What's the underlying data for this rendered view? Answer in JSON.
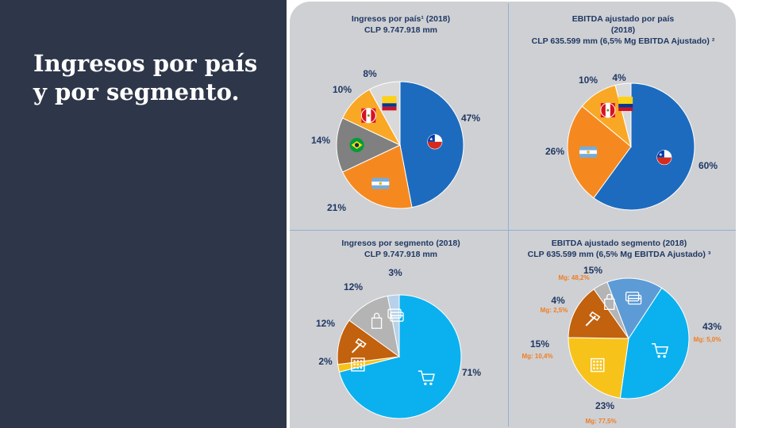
{
  "slide": {
    "title_line1": "Ingresos por país",
    "title_line2": "y por segmento."
  },
  "colors": {
    "left_panel": "#2e3649",
    "card": "#cfd0d3",
    "divider": "#8fb0d6",
    "blue_dark": "#1d6bbf",
    "orange": "#f5891f",
    "gray": "#808080",
    "amber": "#f9a825",
    "light_gray": "#d9d9d9",
    "sky_blue": "#0bb1ef",
    "brown": "#c2610e",
    "yellow": "#f7c31b",
    "steel_blue": "#5c9bd6",
    "light_blue": "#b7d1ea"
  },
  "chart_data": [
    {
      "id": "ingresos-pais",
      "type": "pie",
      "title_line1": "Ingresos por país¹ (2018)",
      "title_line2": "CLP 9.747.918 mm",
      "title_line3": "",
      "slices": [
        {
          "value": 47,
          "label": "47%",
          "icon": "chile-flag-icon",
          "color": "#1d6bbf"
        },
        {
          "value": 21,
          "label": "21%",
          "icon": "argentina-flag-icon",
          "color": "#f5891f"
        },
        {
          "value": 14,
          "label": "14%",
          "icon": "brazil-flag-icon",
          "color": "#808080"
        },
        {
          "value": 10,
          "label": "10%",
          "icon": "peru-flag-icon",
          "color": "#f9a825"
        },
        {
          "value": 8,
          "label": "8%",
          "icon": "colombia-flag-icon",
          "color": "#d9d9d9"
        }
      ]
    },
    {
      "id": "ebitda-pais",
      "type": "pie",
      "title_line1": "EBITDA ajustado por país",
      "title_line2": "(2018)",
      "title_line3": "CLP 635.599 mm (6,5% Mg EBITDA Ajustado) ²",
      "slices": [
        {
          "value": 60,
          "label": "60%",
          "icon": "chile-flag-icon",
          "color": "#1d6bbf"
        },
        {
          "value": 26,
          "label": "26%",
          "icon": "argentina-flag-icon",
          "color": "#f5891f"
        },
        {
          "value": 10,
          "label": "10%",
          "icon": "peru-flag-icon",
          "color": "#f9a825"
        },
        {
          "value": 4,
          "label": "4%",
          "icon": "colombia-flag-icon",
          "color": "#d9d9d9"
        }
      ]
    },
    {
      "id": "ingresos-segmento",
      "type": "pie",
      "title_line1": "Ingresos por segmento  (2018)",
      "title_line2": "CLP 9.747.918 mm",
      "title_line3": "",
      "slices": [
        {
          "value": 71,
          "label": "71%",
          "icon": "shopping-cart-icon",
          "color": "#0bb1ef"
        },
        {
          "value": 2,
          "label": "2%",
          "icon": "building-icon",
          "color": "#f7c31b"
        },
        {
          "value": 12,
          "label": "12%",
          "icon": "hammer-icon",
          "color": "#c2610e"
        },
        {
          "value": 12,
          "label": "12%",
          "icon": "shopping-bag-icon",
          "color": "#b4b4b4"
        },
        {
          "value": 3,
          "label": "3%",
          "icon": "credit-card-icon",
          "color": "#b7d1ea"
        }
      ]
    },
    {
      "id": "ebitda-segmento",
      "type": "pie",
      "title_line1": "EBITDA ajustado segmento (2018)",
      "title_line2": "CLP 635.599 mm (6,5% Mg EBITDA Ajustado) ³",
      "title_line3": "",
      "slices": [
        {
          "value": 43,
          "label": "43%",
          "margin": "Mg: 5,0%",
          "icon": "shopping-cart-icon",
          "color": "#0bb1ef"
        },
        {
          "value": 23,
          "label": "23%",
          "margin": "Mg: 77,5%",
          "icon": "building-icon",
          "color": "#f7c31b"
        },
        {
          "value": 15,
          "label": "15%",
          "margin": "Mg: 10,4%",
          "icon": "hammer-icon",
          "color": "#c2610e"
        },
        {
          "value": 4,
          "label": "4%",
          "margin": "Mg: 2,5%",
          "icon": "shopping-bag-icon",
          "color": "#b4b4b4"
        },
        {
          "value": 15,
          "label": "15%",
          "margin": "Mg: 48,2%",
          "icon": "credit-card-icon",
          "color": "#5c9bd6"
        }
      ]
    }
  ]
}
